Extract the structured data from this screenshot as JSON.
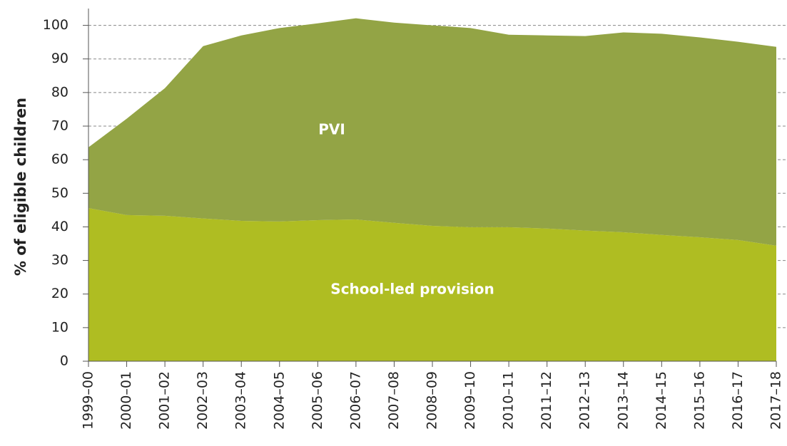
{
  "chart_data": {
    "type": "stacked_area",
    "y_label": "% of eligible children",
    "categories": [
      "1999–00",
      "2000–01",
      "2001–02",
      "2002–03",
      "2003–04",
      "2004–05",
      "2005–06",
      "2006–07",
      "2007–08",
      "2008–09",
      "2009–10",
      "2010–11",
      "2011–12",
      "2012–13",
      "2013–14",
      "2014–15",
      "2015–16",
      "2016–17",
      "2017–18"
    ],
    "series": [
      {
        "name": "School-led provision",
        "color": "#afbd22",
        "values": [
          45.6,
          43.5,
          43.3,
          42.5,
          41.8,
          41.6,
          42.0,
          42.2,
          41.2,
          40.3,
          39.9,
          39.9,
          39.5,
          38.9,
          38.4,
          37.6,
          36.9,
          36.1,
          34.4
        ]
      },
      {
        "name": "PVI",
        "color": "#93a445",
        "values": [
          18.1,
          28.7,
          38.0,
          51.3,
          55.2,
          57.6,
          58.6,
          59.9,
          59.6,
          59.7,
          59.3,
          57.3,
          57.5,
          57.9,
          59.5,
          59.9,
          59.5,
          59.0,
          59.2
        ]
      }
    ],
    "ylim": [
      0,
      105
    ],
    "yticks": [
      0,
      10,
      20,
      30,
      40,
      50,
      60,
      70,
      80,
      90,
      100
    ],
    "grid": true
  }
}
